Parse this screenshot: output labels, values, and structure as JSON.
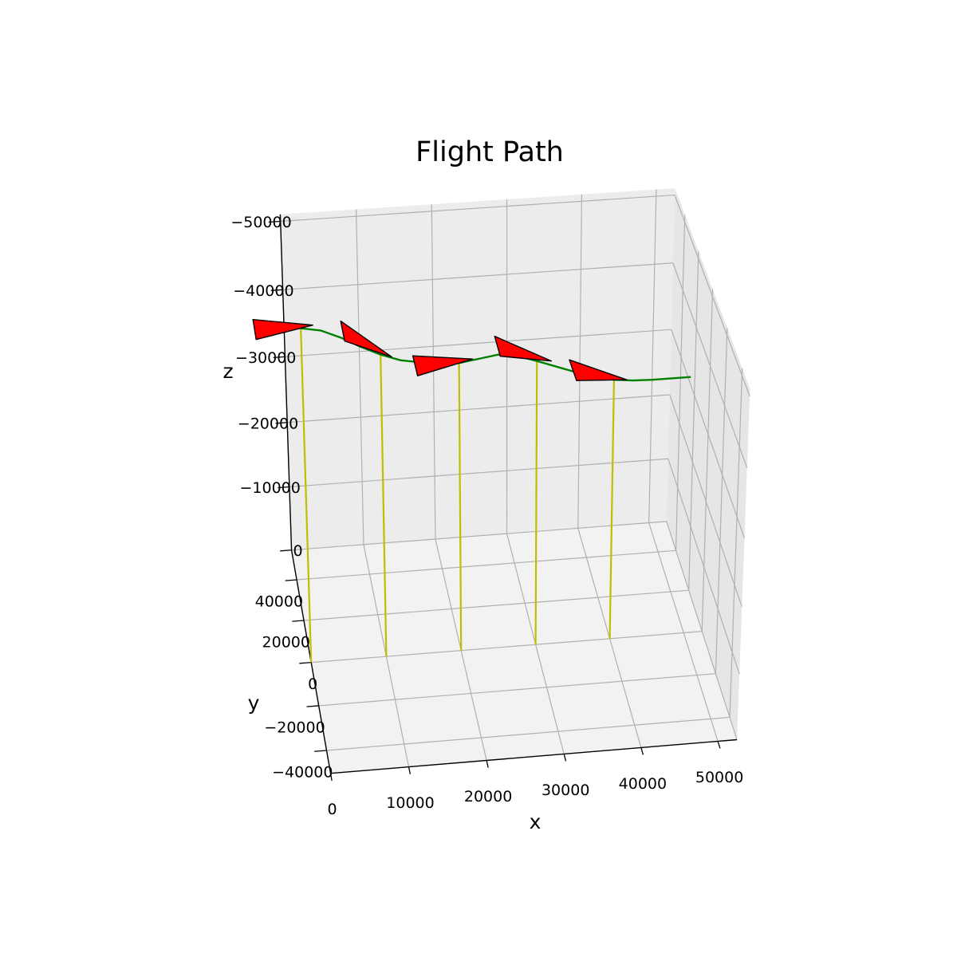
{
  "chart_data": {
    "type": "line3d",
    "title": "Flight Path",
    "xlabel": "x",
    "ylabel": "y",
    "zlabel": "z",
    "x": [
      0,
      2500,
      5000,
      7500,
      10000,
      12500,
      15000,
      17500,
      20000,
      22500,
      25000,
      27500,
      30000,
      32500,
      35000,
      37500,
      40000,
      42500,
      45000,
      47500,
      50000
    ],
    "y": [
      0,
      0,
      0,
      0,
      0,
      0,
      0,
      0,
      0,
      0,
      0,
      0,
      0,
      0,
      0,
      0,
      0,
      0,
      0,
      0,
      0
    ],
    "z": [
      -49500,
      -49000,
      -47800,
      -46300,
      -45000,
      -44000,
      -43500,
      -43200,
      -43000,
      -43400,
      -43800,
      -43400,
      -42500,
      -41500,
      -40500,
      -39600,
      -39000,
      -38700,
      -38600,
      -38600,
      -38600
    ],
    "color": "#008000",
    "markers": {
      "x": [
        0,
        10000,
        20000,
        30000,
        40000
      ],
      "y": [
        0,
        0,
        0,
        0,
        0
      ],
      "z": [
        -49500,
        -45000,
        -43000,
        -42500,
        -39000
      ]
    },
    "marker_color": "#ff0000",
    "drop_color": "#bfbf00",
    "xlim": [
      0,
      52500
    ],
    "ylim": [
      -50000,
      55000
    ],
    "zlim": [
      0,
      -51000
    ],
    "xticks": [
      0,
      10000,
      20000,
      30000,
      40000,
      50000
    ],
    "yticks": [
      {
        "value": -40000,
        "label": "−40000"
      },
      {
        "value": -20000,
        "label": "−20000"
      },
      0,
      20000,
      40000
    ],
    "zticks": [
      0,
      {
        "value": -10000,
        "label": "−10000"
      },
      {
        "value": -20000,
        "label": "−20000"
      },
      {
        "value": -30000,
        "label": "−30000"
      },
      {
        "value": -40000,
        "label": "−40000"
      },
      {
        "value": -50000,
        "label": "−50000"
      }
    ],
    "grid": true
  }
}
